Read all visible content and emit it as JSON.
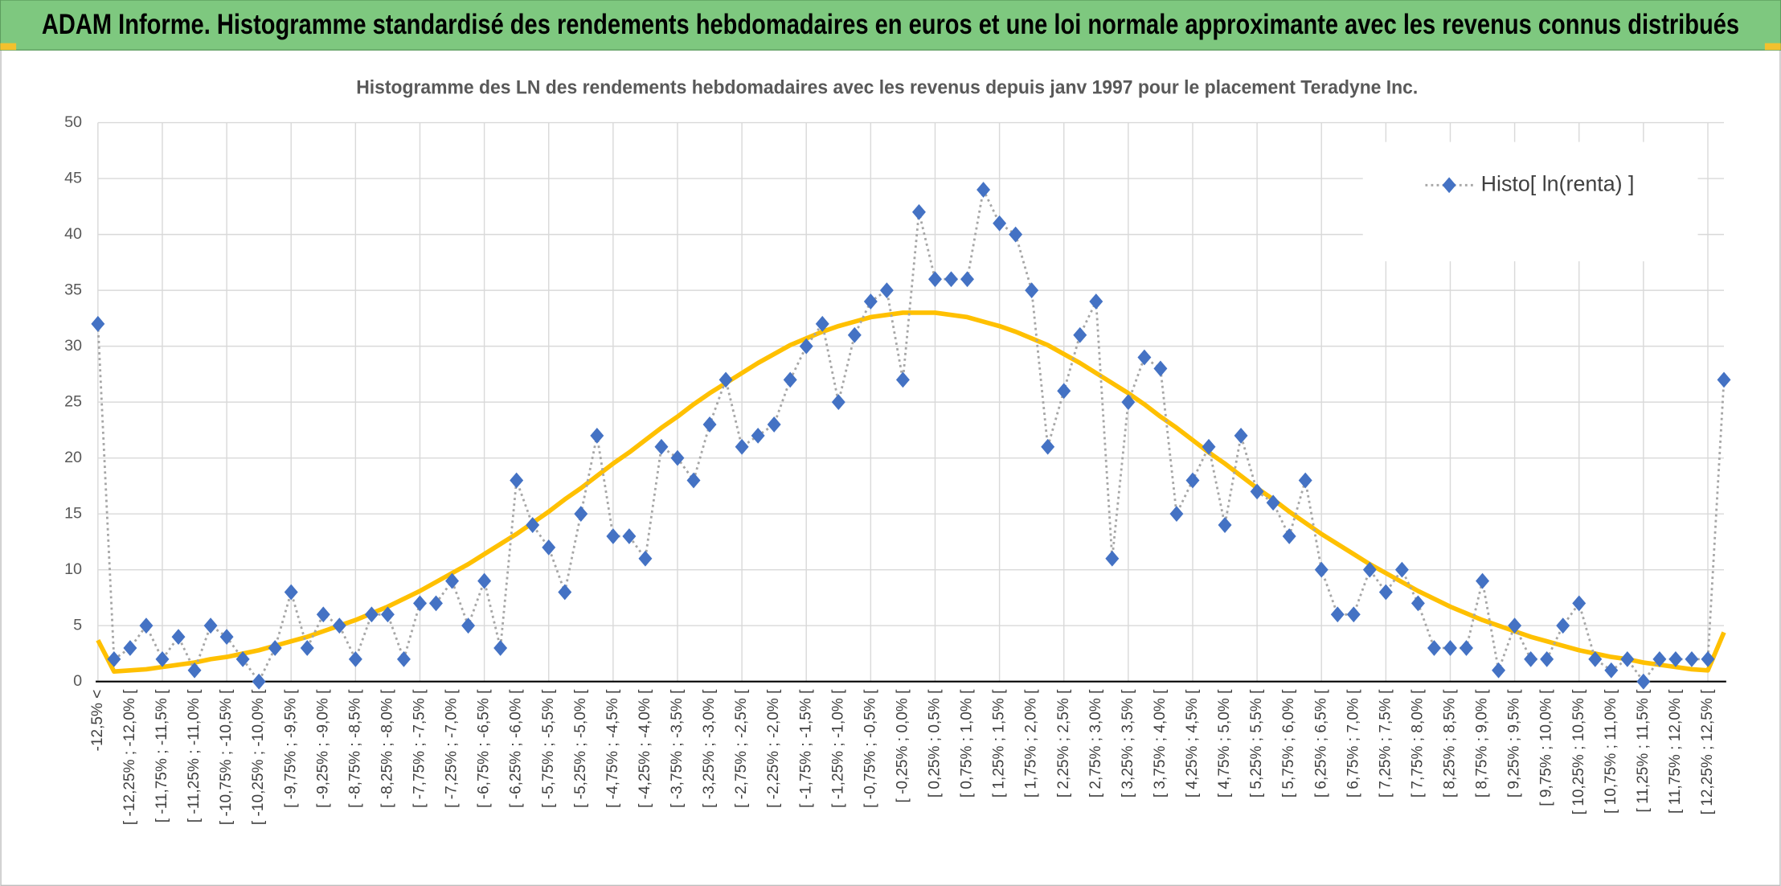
{
  "chart_data": {
    "type": "line",
    "title": "ADAM Informe. Histogramme standardisé des rendements hebdomadaires en euros et une loi normale approximante avec les revenus connus distribués",
    "subtitle": "Histogramme des LN des rendements hebdomadaires avec les revenus depuis janv 1997 pour le placement Teradyne Inc.",
    "categories": [
      "-12,5% <",
      null,
      "[ -12,25% ; -12,0% [",
      null,
      "[ -11,75% ; -11,5% [",
      null,
      "[ -11,25% ; -11,0% [",
      null,
      "[ -10,75% ; -10,5% [",
      null,
      "[ -10,25% ; -10,0% [",
      null,
      "[ -9,75% ; -9,5% [",
      null,
      "[ -9,25% ; -9,0% [",
      null,
      "[ -8,75% ; -8,5% [",
      null,
      "[ -8,25% ; -8,0% [",
      null,
      "[ -7,75% ; -7,5% [",
      null,
      "[ -7,25% ; -7,0% [",
      null,
      "[ -6,75% ; -6,5% [",
      null,
      "[ -6,25% ; -6,0% [",
      null,
      "[ -5,75% ; -5,5% [",
      null,
      "[ -5,25% ; -5,0% [",
      null,
      "[ -4,75% ; -4,5% [",
      null,
      "[ -4,25% ; -4,0% [",
      null,
      "[ -3,75% ; -3,5% [",
      null,
      "[ -3,25% ; -3,0% [",
      null,
      "[ -2,75% ; -2,5% [",
      null,
      "[ -2,25% ; -2,0% [",
      null,
      "[ -1,75% ; -1,5% [",
      null,
      "[ -1,25% ; -1,0% [",
      null,
      "[ -0,75% ; -0,5% [",
      null,
      "[ -0,25% ; 0,0% [",
      null,
      "[ 0,25% ; 0,5% [",
      null,
      "[ 0,75% ; 1,0% [",
      null,
      "[ 1,25% ; 1,5% [",
      null,
      "[ 1,75% ; 2,0% [",
      null,
      "[ 2,25% ; 2,5% [",
      null,
      "[ 2,75% ; 3,0% [",
      null,
      "[ 3,25% ; 3,5% [",
      null,
      "[ 3,75% ; 4,0% [",
      null,
      "[ 4,25% ; 4,5% [",
      null,
      "[ 4,75% ; 5,0% [",
      null,
      "[ 5,25% ; 5,5% [",
      null,
      "[ 5,75% ; 6,0% [",
      null,
      "[ 6,25% ; 6,5% [",
      null,
      "[ 6,75% ; 7,0% [",
      null,
      "[ 7,25% ; 7,5% [",
      null,
      "[ 7,75% ; 8,0% [",
      null,
      "[ 8,25% ; 8,5% [",
      null,
      "[ 8,75% ; 9,0% [",
      null,
      "[ 9,25% ; 9,5% [",
      null,
      "[ 9,75% ; 10,0% [",
      null,
      "[ 10,25% ; 10,5% [",
      null,
      "[ 10,75% ; 11,0% [",
      null,
      "[ 11,25% ; 11,5% [",
      null,
      "[ 11,75% ; 12,0% [",
      null,
      "[ 12,25% ; 12,5% [",
      null
    ],
    "series": [
      {
        "name": "Histo[ ln(renta) ]",
        "color": "#a6a6a6",
        "marker_color": "#4472c4",
        "line_style": "dotted",
        "marker": "diamond",
        "values": [
          32,
          2,
          3,
          5,
          2,
          4,
          1,
          5,
          4,
          2,
          0,
          3,
          8,
          3,
          6,
          5,
          2,
          6,
          6,
          2,
          7,
          7,
          9,
          5,
          9,
          3,
          18,
          14,
          12,
          8,
          15,
          22,
          13,
          13,
          11,
          21,
          20,
          18,
          23,
          27,
          21,
          22,
          23,
          27,
          30,
          32,
          25,
          31,
          34,
          35,
          27,
          42,
          36,
          36,
          36,
          44,
          41,
          40,
          35,
          21,
          26,
          31,
          34,
          11,
          25,
          29,
          28,
          15,
          18,
          21,
          14,
          22,
          17,
          16,
          13,
          18,
          10,
          6,
          6,
          10,
          8,
          10,
          7,
          3,
          3,
          3,
          9,
          1,
          5,
          2,
          2,
          5,
          7,
          2,
          1,
          2,
          0,
          2,
          2,
          2,
          2,
          27
        ]
      },
      {
        "color": "#ffc000",
        "line_style": "solid",
        "values": [
          3.7,
          0.9,
          1.0,
          1.1,
          1.3,
          1.5,
          1.7,
          2.0,
          2.2,
          2.5,
          2.8,
          3.2,
          3.6,
          4.0,
          4.5,
          5.0,
          5.5,
          6.1,
          6.7,
          7.4,
          8.1,
          8.9,
          9.7,
          10.5,
          11.4,
          12.3,
          13.2,
          14.2,
          15.2,
          16.3,
          17.3,
          18.4,
          19.5,
          20.5,
          21.6,
          22.7,
          23.7,
          24.8,
          25.8,
          26.7,
          27.6,
          28.5,
          29.3,
          30.1,
          30.7,
          31.3,
          31.8,
          32.2,
          32.6,
          32.8,
          33.0,
          33.0,
          33.0,
          32.8,
          32.6,
          32.2,
          31.8,
          31.3,
          30.7,
          30.1,
          29.3,
          28.5,
          27.6,
          26.7,
          25.8,
          24.8,
          23.7,
          22.7,
          21.6,
          20.5,
          19.5,
          18.4,
          17.3,
          16.3,
          15.2,
          14.2,
          13.2,
          12.3,
          11.4,
          10.5,
          9.7,
          8.9,
          8.1,
          7.4,
          6.7,
          6.1,
          5.5,
          5.0,
          4.5,
          4.0,
          3.6,
          3.2,
          2.8,
          2.5,
          2.2,
          2.0,
          1.7,
          1.5,
          1.3,
          1.1,
          1.0,
          4.4
        ]
      }
    ],
    "ylim": [
      0,
      50
    ],
    "yticks": [
      0,
      5,
      10,
      15,
      20,
      25,
      30,
      35,
      40,
      45,
      50
    ],
    "grid": true,
    "legend_position": "top-right"
  }
}
